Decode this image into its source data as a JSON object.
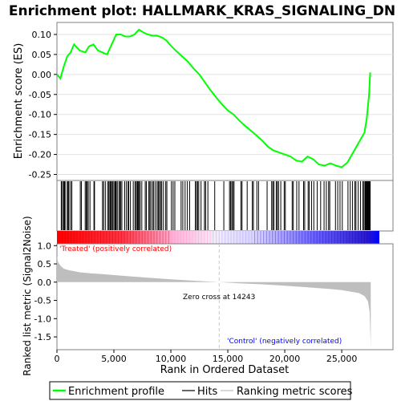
{
  "chart_data": {
    "type": "line",
    "title": "Enrichment plot: HALLMARK_KRAS_SIGNALING_DN",
    "top_panel": {
      "ylabel": "Enrichment score (ES)",
      "ylim": [
        -0.265,
        0.13
      ],
      "yticks": [
        0.1,
        0.05,
        0.0,
        -0.05,
        -0.1,
        -0.15,
        -0.2,
        -0.25
      ],
      "ytick_labels": [
        "0.10",
        "0.05",
        "0.00",
        "-0.05",
        "-0.10",
        "-0.15",
        "-0.20",
        "-0.25"
      ],
      "series": [
        {
          "name": "Enrichment profile",
          "color": "#00ff00",
          "x": [
            0,
            300,
            600,
            900,
            1200,
            1500,
            2000,
            2500,
            2800,
            3200,
            3600,
            4000,
            4400,
            4800,
            5200,
            5600,
            6000,
            6400,
            6800,
            7200,
            7600,
            8000,
            8400,
            8800,
            9200,
            9600,
            10000,
            10500,
            11000,
            11500,
            12000,
            12500,
            13000,
            13500,
            14000,
            14500,
            15000,
            15500,
            16000,
            16500,
            17000,
            17500,
            18000,
            18500,
            19000,
            19500,
            20000,
            20500,
            21000,
            21500,
            22000,
            22500,
            23000,
            23500,
            24000,
            24500,
            25000,
            25500,
            26000,
            26500,
            27000,
            27200,
            27400,
            27500
          ],
          "y": [
            0.0,
            -0.01,
            0.02,
            0.045,
            0.055,
            0.075,
            0.06,
            0.055,
            0.07,
            0.075,
            0.06,
            0.055,
            0.05,
            0.075,
            0.1,
            0.1,
            0.095,
            0.095,
            0.1,
            0.112,
            0.105,
            0.1,
            0.097,
            0.097,
            0.093,
            0.085,
            0.072,
            0.058,
            0.045,
            0.032,
            0.015,
            0.0,
            -0.02,
            -0.04,
            -0.058,
            -0.075,
            -0.09,
            -0.1,
            -0.115,
            -0.128,
            -0.14,
            -0.152,
            -0.165,
            -0.18,
            -0.19,
            -0.195,
            -0.2,
            -0.205,
            -0.215,
            -0.218,
            -0.205,
            -0.212,
            -0.225,
            -0.228,
            -0.222,
            -0.228,
            -0.232,
            -0.22,
            -0.195,
            -0.17,
            -0.145,
            -0.11,
            -0.05,
            0.005
          ]
        }
      ]
    },
    "hits_panel": {
      "name": "Hits",
      "hit_ranks": [
        380,
        430,
        560,
        620,
        680,
        720,
        900,
        980,
        1050,
        1200,
        1310,
        2050,
        2150,
        2480,
        2580,
        2650,
        2750,
        2900,
        3250,
        3300,
        4000,
        4100,
        4250,
        4450,
        4550,
        4650,
        4720,
        4800,
        4900,
        5000,
        5100,
        5150,
        5200,
        5300,
        5450,
        5500,
        5600,
        5700,
        5950,
        6100,
        6250,
        6300,
        6450,
        6700,
        6850,
        6950,
        7050,
        7100,
        7150,
        7250,
        7300,
        7450,
        7750,
        7850,
        8050,
        8150,
        8250,
        8400,
        8500,
        8650,
        8800,
        8900,
        9000,
        9100,
        9200,
        9350,
        9550,
        9650,
        10050,
        10200,
        10350,
        10900,
        11050,
        11250,
        11450,
        11650,
        12150,
        12250,
        12350,
        12450,
        12650,
        12950,
        13050,
        13250,
        13850,
        14650,
        15150,
        15250,
        15350,
        15450,
        15550,
        16150,
        16250,
        16700,
        17150,
        17250,
        17550,
        17700,
        18450,
        18850,
        18950,
        19050,
        19250,
        19350,
        19450,
        19650,
        19950,
        20050,
        20650,
        20750,
        21050,
        21250,
        21650,
        21750,
        22050,
        22150,
        22350,
        22550,
        22850,
        23150,
        23450,
        23650,
        23850,
        23950,
        24450,
        24650,
        24850,
        25050,
        25550,
        25750,
        25950,
        26150,
        26250,
        26450,
        26650,
        26850,
        26950,
        27050,
        27100,
        27150,
        27200,
        27250,
        27300,
        27350,
        27400,
        27450,
        27500
      ]
    },
    "bottom_panel": {
      "ylabel": "Ranked list metric (Signal2Noise)",
      "ylim": [
        -1.85,
        1.05
      ],
      "yticks": [
        1.0,
        0.5,
        0.0,
        -0.5,
        -1.0,
        -1.5
      ],
      "ytick_labels": [
        "1.0",
        "0.5",
        "0.0",
        "-0.5",
        "-1.0",
        "-1.5"
      ],
      "series": [
        {
          "name": "Ranking metric scores",
          "color": "#bebebe",
          "x": [
            0,
            100,
            300,
            600,
            1000,
            2000,
            3000,
            4000,
            6000,
            8000,
            10000,
            12000,
            14243,
            16000,
            18000,
            20000,
            22000,
            24000,
            25000,
            26000,
            26500,
            27000,
            27300,
            27450,
            27500,
            27550
          ],
          "y": [
            0.72,
            0.55,
            0.45,
            0.37,
            0.33,
            0.27,
            0.24,
            0.22,
            0.17,
            0.12,
            0.08,
            0.04,
            0.0,
            -0.03,
            -0.06,
            -0.1,
            -0.14,
            -0.19,
            -0.22,
            -0.27,
            -0.3,
            -0.38,
            -0.52,
            -0.8,
            -1.3,
            -1.78
          ]
        }
      ],
      "annotations": {
        "zero_cross": "Zero cross at 14243",
        "zero_cross_rank": 14243,
        "treated": "'Treated' (positively correlated)",
        "control": "'Control' (negatively correlated)"
      }
    },
    "xlabel": "Rank in Ordered Dataset",
    "xlim": [
      0,
      29500
    ],
    "xticks": [
      0,
      5000,
      10000,
      15000,
      20000,
      25000
    ],
    "xtick_labels": [
      "0",
      "5,000",
      "10,000",
      "15,000",
      "20,000",
      "25,000"
    ],
    "n_genes": 27550,
    "legend": {
      "placement": "bottom",
      "items": [
        "Enrichment profile",
        "Hits",
        "Ranking metric scores"
      ]
    },
    "colors": {
      "profile": "#00ff00",
      "hits": "#000000",
      "metric": "#bebebe",
      "treated": "#ff0000",
      "control": "#0000ff",
      "zero_line": "#c8c8c8"
    }
  }
}
